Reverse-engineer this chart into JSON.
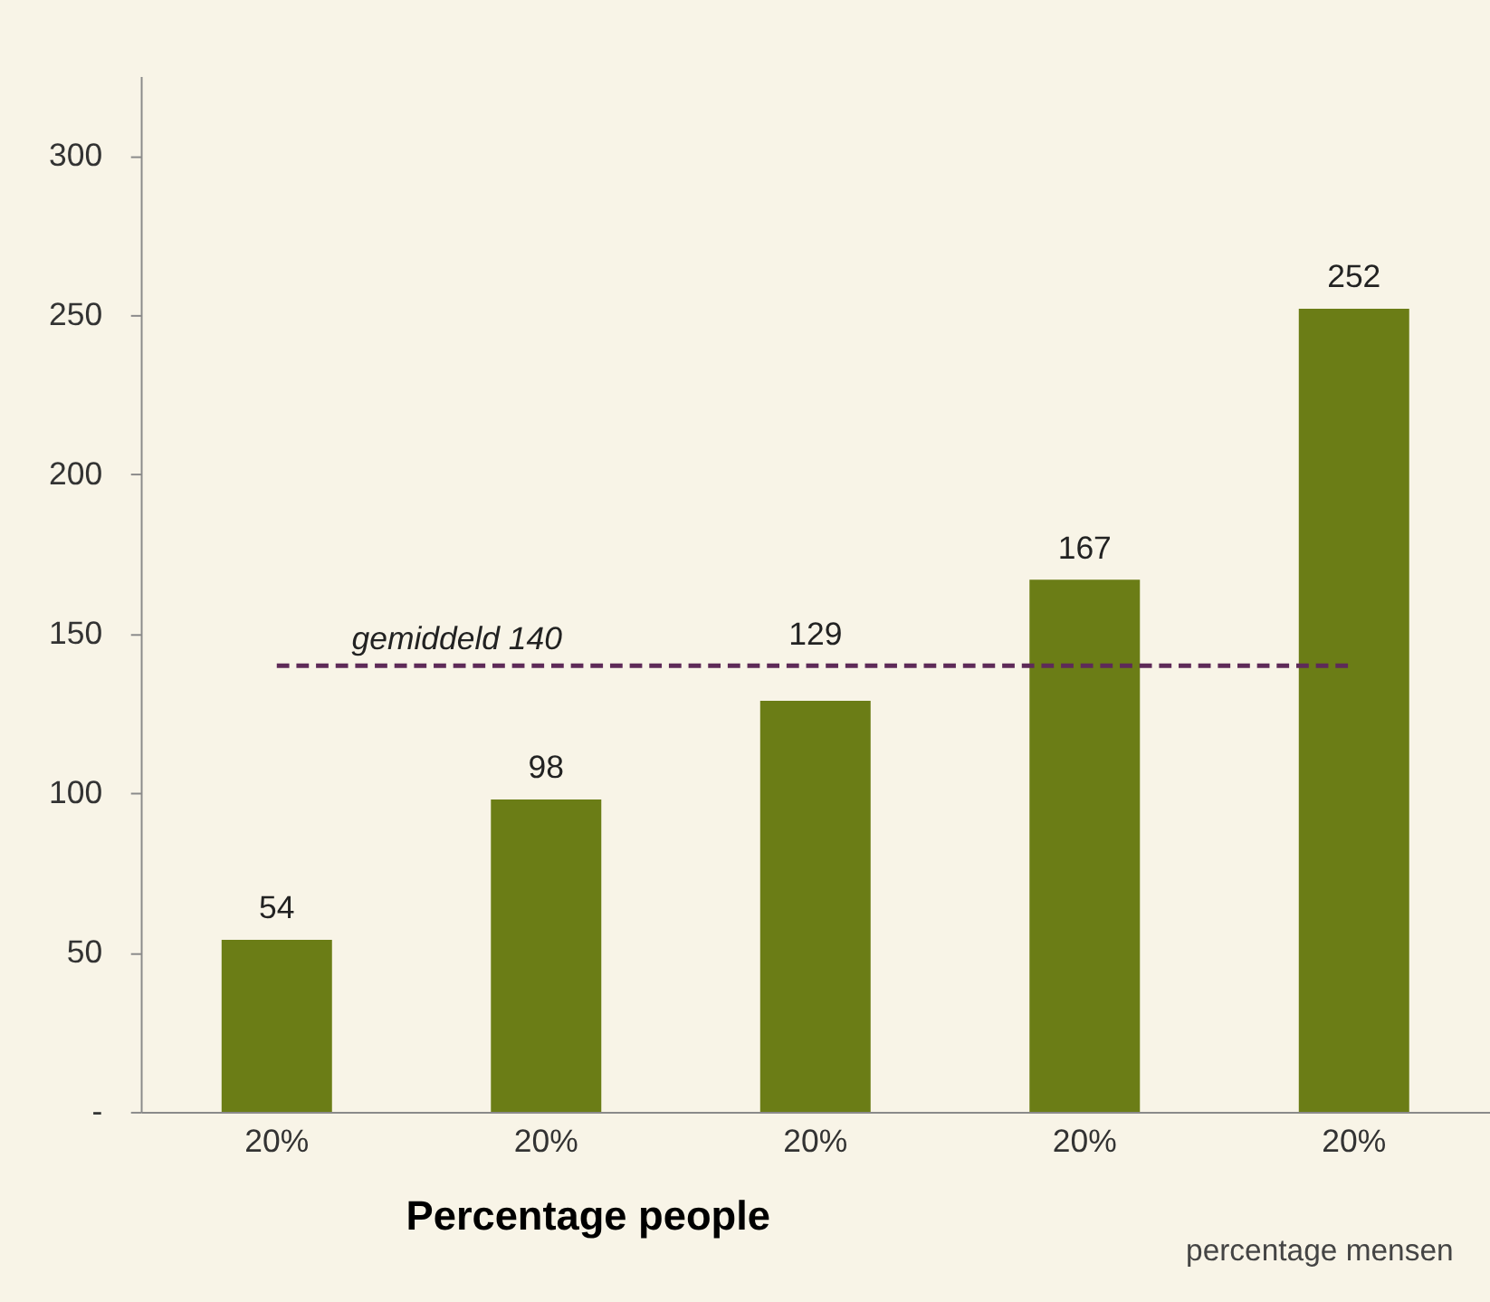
{
  "chart_data": {
    "type": "bar",
    "categories": [
      "20%",
      "20%",
      "20%",
      "20%",
      "20%"
    ],
    "values": [
      54,
      98,
      129,
      167,
      252
    ],
    "color": "#6b7d16",
    "xlabel": "percentage mensen",
    "annotations": [
      "Percentage people"
    ],
    "ylim": [
      0,
      325
    ],
    "yticks": [
      {
        "value": 0,
        "label": "-"
      },
      50,
      100,
      150,
      200,
      250,
      300
    ],
    "data_labels": true,
    "ref_lines": [
      {
        "axis": "y",
        "value": 140,
        "label": "gemiddeld 140",
        "color": "#5e2a58",
        "line_style": "dashed"
      }
    ]
  }
}
